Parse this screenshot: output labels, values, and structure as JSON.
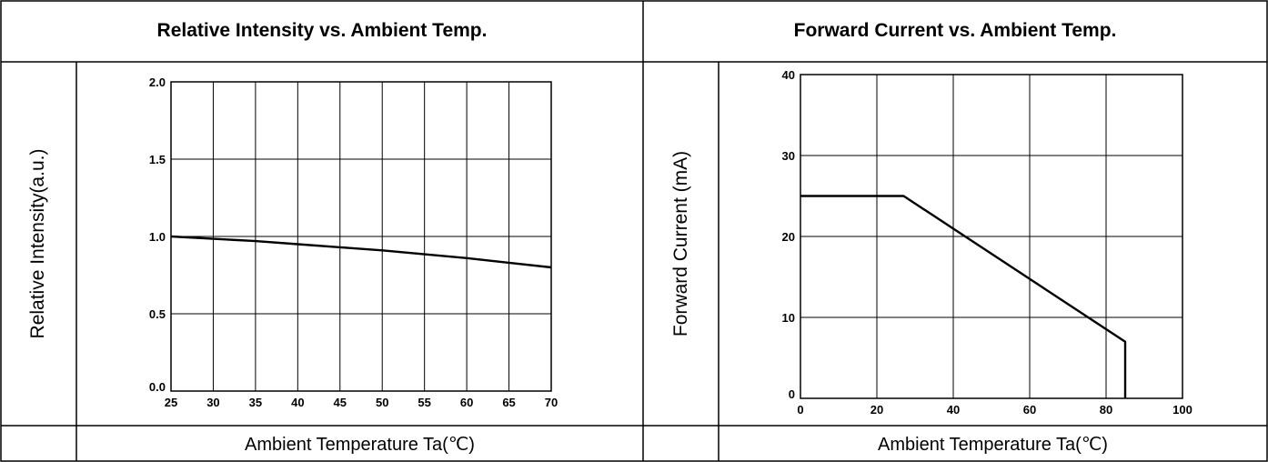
{
  "charts": [
    {
      "title": "Relative Intensity vs. Ambient Temp.",
      "ylabel": "Relative Intensity(a.u.)",
      "xlabel": "Ambient Temperature Ta(℃)"
    },
    {
      "title": "Forward Current vs. Ambient Temp.",
      "ylabel": "Forward Current (mA)",
      "xlabel": "Ambient Temperature Ta(℃)"
    }
  ],
  "chart_data": [
    {
      "type": "line",
      "title": "Relative Intensity vs. Ambient Temp.",
      "xlabel": "Ambient Temperature Ta(℃)",
      "ylabel": "Relative Intensity(a.u.)",
      "xlim": [
        25,
        70
      ],
      "ylim": [
        0.0,
        2.0
      ],
      "xticks": [
        "25",
        "30",
        "35",
        "40",
        "45",
        "50",
        "55",
        "60",
        "65",
        "70"
      ],
      "yticks": [
        "0.0",
        "0.5",
        "1.0",
        "1.5",
        "2.0"
      ],
      "grid": true,
      "series": [
        {
          "x": [
            25,
            30,
            35,
            40,
            45,
            50,
            55,
            60,
            65,
            70
          ],
          "y": [
            1.0,
            0.985,
            0.97,
            0.95,
            0.93,
            0.91,
            0.885,
            0.86,
            0.83,
            0.8
          ]
        }
      ]
    },
    {
      "type": "line",
      "title": "Forward Current vs. Ambient Temp.",
      "xlabel": "Ambient Temperature Ta(℃)",
      "ylabel": "Forward Current (mA)",
      "xlim": [
        0,
        100
      ],
      "ylim": [
        0,
        40
      ],
      "xticks": [
        "0",
        "20",
        "40",
        "60",
        "80",
        "100"
      ],
      "yticks": [
        "0",
        "10",
        "20",
        "30",
        "40"
      ],
      "grid": true,
      "series": [
        {
          "x": [
            0,
            27,
            85,
            85
          ],
          "y": [
            25,
            25,
            7,
            0
          ]
        }
      ]
    }
  ]
}
